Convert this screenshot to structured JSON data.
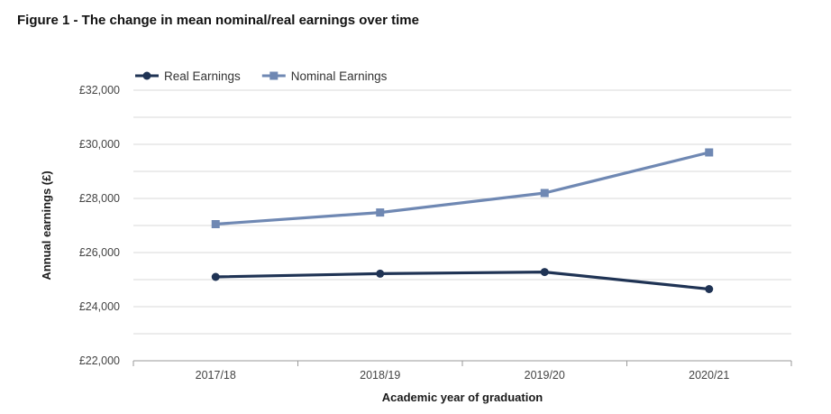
{
  "figure": {
    "title": "Figure 1 - The change in mean nominal/real earnings over time"
  },
  "chart_data": {
    "type": "line",
    "categories": [
      "2017/18",
      "2018/19",
      "2019/20",
      "2020/21"
    ],
    "series": [
      {
        "name": "Real Earnings",
        "values": [
          25100,
          25220,
          25280,
          24650
        ],
        "color": "#1f3354",
        "marker": "circle"
      },
      {
        "name": "Nominal Earnings",
        "values": [
          27050,
          27480,
          28200,
          29700
        ],
        "color": "#6f88b3",
        "marker": "square"
      }
    ],
    "xlabel": "Academic year of graduation",
    "ylabel": "Annual earnings (£)",
    "ylim": [
      22000,
      32000
    ],
    "yticks": [
      22000,
      24000,
      26000,
      28000,
      30000,
      32000
    ],
    "ytick_labels": [
      "£22,000",
      "£24,000",
      "£26,000",
      "£28,000",
      "£30,000",
      "£32,000"
    ],
    "grid": true,
    "legend": "top-left"
  }
}
